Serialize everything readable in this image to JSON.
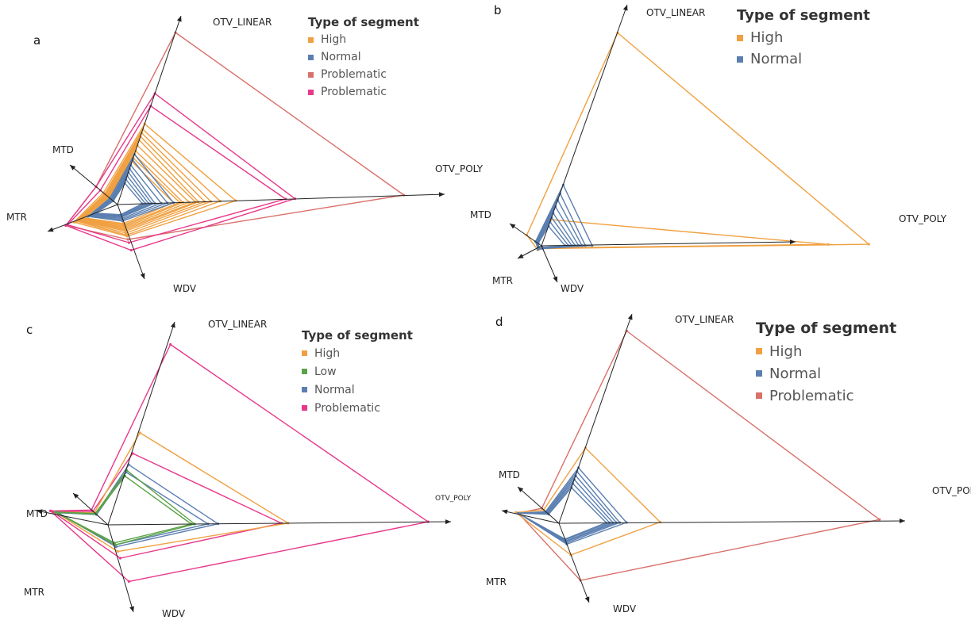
{
  "charts": {
    "a": {
      "panel_label": "a",
      "legend_title": "Type of segment",
      "legend": [
        {
          "name": "High",
          "color": "#f0a040"
        },
        {
          "name": "Normal",
          "color": "#5b7fb0"
        },
        {
          "name": "Problematic",
          "color": "#d9706a"
        },
        {
          "name": "Problematic",
          "color": "#e8388a"
        }
      ],
      "axis_labels": {
        "top": "OTV_LINEAR",
        "right": "OTV_POLY",
        "upleft": "MTD",
        "left": "MTR",
        "bottom": "WDV"
      }
    },
    "b": {
      "panel_label": "b",
      "legend_title": "Type of segment",
      "legend": [
        {
          "name": "High",
          "color": "#f0a040"
        },
        {
          "name": "Normal",
          "color": "#5b7fb0"
        }
      ],
      "axis_labels": {
        "top": "OTV_LINEAR",
        "right": "OTV_POLY",
        "upleft": "MTD",
        "left": "MTR",
        "bottom": "WDV"
      }
    },
    "c": {
      "panel_label": "c",
      "legend_title": "Type of segment",
      "legend": [
        {
          "name": "High",
          "color": "#f0a040"
        },
        {
          "name": "Low",
          "color": "#5aa346"
        },
        {
          "name": "Normal",
          "color": "#5b7fb0"
        },
        {
          "name": "Problematic",
          "color": "#e8388a"
        }
      ],
      "axis_labels": {
        "top": "OTV_LINEAR",
        "right": "OTV_POLY",
        "upleft": "MTD",
        "left": "MTR",
        "bottom": "WDV"
      }
    },
    "d": {
      "panel_label": "d",
      "legend_title": "Type of segment",
      "legend": [
        {
          "name": "High",
          "color": "#f0a040"
        },
        {
          "name": "Normal",
          "color": "#5b7fb0"
        },
        {
          "name": "Problematic",
          "color": "#d9706a"
        }
      ],
      "axis_labels": {
        "top": "OTV_LINEAR",
        "right": "OTV_POLY",
        "upleft": "MTD",
        "left": "MTR",
        "bottom": "WDV"
      }
    }
  },
  "chart_data": [
    {
      "type": "radar",
      "axes": [
        "OTV_LINEAR",
        "OTV_POLY",
        "WDV",
        "MTR",
        "MTD"
      ],
      "series": [
        {
          "name": "Problematic",
          "color": "#d9706a",
          "values": [
            0.96,
            0.92,
            0.55,
            0.88,
            0.5
          ]
        },
        {
          "name": "Problematic",
          "color": "#e8388a",
          "values": [
            0.62,
            0.57,
            0.72,
            0.88,
            0.5
          ]
        },
        {
          "name": "Problematic",
          "color": "#e8388a",
          "values": [
            0.55,
            0.54,
            0.6,
            0.85,
            0.4
          ]
        },
        {
          "name": "High",
          "color": "#f0a040",
          "values": [
            0.45,
            0.38,
            0.5,
            0.74,
            0.33
          ]
        },
        {
          "name": "High",
          "color": "#f0a040",
          "values": [
            0.42,
            0.33,
            0.48,
            0.7,
            0.3
          ]
        },
        {
          "name": "High",
          "color": "#f0a040",
          "values": [
            0.4,
            0.3,
            0.45,
            0.68,
            0.28
          ]
        },
        {
          "name": "High",
          "color": "#f0a040",
          "values": [
            0.38,
            0.28,
            0.42,
            0.66,
            0.26
          ]
        },
        {
          "name": "High",
          "color": "#f0a040",
          "values": [
            0.36,
            0.26,
            0.4,
            0.64,
            0.25
          ]
        },
        {
          "name": "High",
          "color": "#f0a040",
          "values": [
            0.33,
            0.25,
            0.38,
            0.63,
            0.24
          ]
        },
        {
          "name": "High",
          "color": "#f0a040",
          "values": [
            0.3,
            0.23,
            0.36,
            0.62,
            0.23
          ]
        },
        {
          "name": "High",
          "color": "#f0a040",
          "values": [
            0.28,
            0.21,
            0.34,
            0.6,
            0.22
          ]
        },
        {
          "name": "High",
          "color": "#f0a040",
          "values": [
            0.26,
            0.2,
            0.32,
            0.58,
            0.21
          ]
        },
        {
          "name": "High",
          "color": "#f0a040",
          "values": [
            0.24,
            0.18,
            0.3,
            0.56,
            0.2
          ]
        },
        {
          "name": "Normal",
          "color": "#5b7fb0",
          "values": [
            0.28,
            0.18,
            0.26,
            0.5,
            0.18
          ]
        },
        {
          "name": "Normal",
          "color": "#5b7fb0",
          "values": [
            0.25,
            0.16,
            0.24,
            0.48,
            0.16
          ]
        },
        {
          "name": "Normal",
          "color": "#5b7fb0",
          "values": [
            0.22,
            0.14,
            0.22,
            0.46,
            0.15
          ]
        },
        {
          "name": "Normal",
          "color": "#5b7fb0",
          "values": [
            0.2,
            0.12,
            0.2,
            0.44,
            0.14
          ]
        },
        {
          "name": "Normal",
          "color": "#5b7fb0",
          "values": [
            0.18,
            0.11,
            0.19,
            0.42,
            0.13
          ]
        },
        {
          "name": "Normal",
          "color": "#5b7fb0",
          "values": [
            0.16,
            0.1,
            0.18,
            0.4,
            0.12
          ]
        },
        {
          "name": "Normal",
          "color": "#5b7fb0",
          "values": [
            0.14,
            0.09,
            0.17,
            0.38,
            0.11
          ]
        },
        {
          "name": "Normal",
          "color": "#5b7fb0",
          "values": [
            0.12,
            0.08,
            0.16,
            0.36,
            0.1
          ]
        }
      ]
    },
    {
      "type": "radar",
      "axes": [
        "OTV_LINEAR",
        "OTV_POLY",
        "WDV",
        "MTR",
        "MTD"
      ],
      "series": [
        {
          "name": "High",
          "color": "#f0a040",
          "values": [
            0.98,
            0.97,
            0.1,
            0.4,
            0.5
          ]
        },
        {
          "name": "High",
          "color": "#f0a040",
          "values": [
            0.12,
            0.85,
            0.08,
            0.35,
            0.2
          ]
        },
        {
          "name": "Normal",
          "color": "#5b7fb0",
          "values": [
            0.28,
            0.15,
            0.1,
            0.35,
            0.2
          ]
        },
        {
          "name": "Normal",
          "color": "#5b7fb0",
          "values": [
            0.24,
            0.13,
            0.09,
            0.33,
            0.18
          ]
        },
        {
          "name": "Normal",
          "color": "#5b7fb0",
          "values": [
            0.21,
            0.12,
            0.08,
            0.31,
            0.16
          ]
        },
        {
          "name": "Normal",
          "color": "#5b7fb0",
          "values": [
            0.18,
            0.11,
            0.08,
            0.3,
            0.15
          ]
        },
        {
          "name": "Normal",
          "color": "#5b7fb0",
          "values": [
            0.15,
            0.1,
            0.07,
            0.28,
            0.14
          ]
        },
        {
          "name": "Normal",
          "color": "#5b7fb0",
          "values": [
            0.13,
            0.09,
            0.07,
            0.27,
            0.13
          ]
        },
        {
          "name": "Normal",
          "color": "#5b7fb0",
          "values": [
            0.11,
            0.08,
            0.06,
            0.26,
            0.12
          ]
        },
        {
          "name": "Normal",
          "color": "#5b7fb0",
          "values": [
            0.09,
            0.07,
            0.06,
            0.25,
            0.11
          ]
        }
      ]
    },
    {
      "type": "radar",
      "axes": [
        "OTV_LINEAR",
        "OTV_POLY",
        "WDV",
        "MTR",
        "MTD"
      ],
      "series": [
        {
          "name": "Problematic",
          "color": "#e8388a",
          "values": [
            0.96,
            0.96,
            0.85,
            0.98,
            0.55
          ]
        },
        {
          "name": "Problematic",
          "color": "#e8388a",
          "values": [
            0.38,
            0.52,
            0.5,
            0.96,
            0.5
          ]
        },
        {
          "name": "High",
          "color": "#f0a040",
          "values": [
            0.49,
            0.54,
            0.4,
            0.9,
            0.45
          ]
        },
        {
          "name": "Normal",
          "color": "#5b7fb0",
          "values": [
            0.32,
            0.33,
            0.33,
            0.85,
            0.4
          ]
        },
        {
          "name": "Normal",
          "color": "#5b7fb0",
          "values": [
            0.28,
            0.3,
            0.3,
            0.85,
            0.38
          ]
        },
        {
          "name": "Low",
          "color": "#5aa346",
          "values": [
            0.29,
            0.26,
            0.3,
            0.9,
            0.42
          ]
        },
        {
          "name": "Low",
          "color": "#5aa346",
          "values": [
            0.26,
            0.25,
            0.27,
            0.88,
            0.4
          ]
        }
      ]
    },
    {
      "type": "radar",
      "axes": [
        "OTV_LINEAR",
        "OTV_POLY",
        "WDV",
        "MTR",
        "MTD"
      ],
      "series": [
        {
          "name": "Problematic",
          "color": "#d9706a",
          "values": [
            0.97,
            0.95,
            0.9,
            0.8,
            0.45
          ]
        },
        {
          "name": "High",
          "color": "#f0a040",
          "values": [
            0.38,
            0.3,
            0.5,
            0.85,
            0.4
          ]
        },
        {
          "name": "Normal",
          "color": "#5b7fb0",
          "values": [
            0.28,
            0.2,
            0.33,
            0.8,
            0.35
          ]
        },
        {
          "name": "Normal",
          "color": "#5b7fb0",
          "values": [
            0.26,
            0.18,
            0.31,
            0.8,
            0.33
          ]
        },
        {
          "name": "Normal",
          "color": "#5b7fb0",
          "values": [
            0.24,
            0.17,
            0.29,
            0.8,
            0.31
          ]
        },
        {
          "name": "Normal",
          "color": "#5b7fb0",
          "values": [
            0.22,
            0.16,
            0.28,
            0.8,
            0.3
          ]
        },
        {
          "name": "Normal",
          "color": "#5b7fb0",
          "values": [
            0.2,
            0.15,
            0.26,
            0.8,
            0.28
          ]
        },
        {
          "name": "Normal",
          "color": "#5b7fb0",
          "values": [
            0.18,
            0.14,
            0.25,
            0.8,
            0.27
          ]
        }
      ]
    }
  ]
}
